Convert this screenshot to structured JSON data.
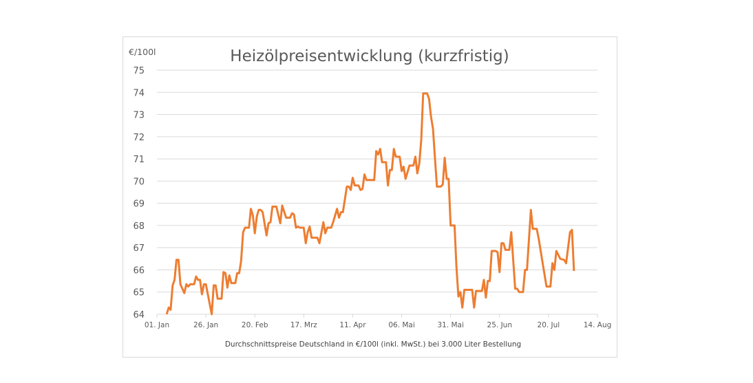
{
  "chart_data": {
    "type": "line",
    "title": "Heizölpreisentwicklung (kurzfristig)",
    "ylabel": "€/100l",
    "xlabel": "Durchschnittspreise Deutschland in €/100l (inkl. MwSt.) bei 3.000 Liter Bestellung",
    "ylim": [
      64,
      75
    ],
    "yticks": [
      "64",
      "65",
      "66",
      "67",
      "68",
      "69",
      "70",
      "71",
      "72",
      "73",
      "74",
      "75"
    ],
    "xlim": [
      "01-01",
      "08-14"
    ],
    "xticks": [
      {
        "date": "01-01",
        "label": "01. Jan"
      },
      {
        "date": "01-26",
        "label": "26. Jan"
      },
      {
        "date": "02-20",
        "label": "20. Feb"
      },
      {
        "date": "03-17",
        "label": "17. Mrz"
      },
      {
        "date": "04-11",
        "label": "11. Apr"
      },
      {
        "date": "05-06",
        "label": "06. Mai"
      },
      {
        "date": "05-31",
        "label": "31. Mai"
      },
      {
        "date": "06-25",
        "label": "25. Jun"
      },
      {
        "date": "07-20",
        "label": "20. Jul"
      },
      {
        "date": "08-14",
        "label": "14. Aug"
      }
    ],
    "grid": true,
    "line_color": "#ED7D31",
    "points": [
      [
        "01-06",
        64.0
      ],
      [
        "01-07",
        64.3
      ],
      [
        "01-08",
        64.2
      ],
      [
        "01-09",
        65.3
      ],
      [
        "01-10",
        65.55
      ],
      [
        "01-11",
        66.45
      ],
      [
        "01-12",
        66.45
      ],
      [
        "01-13",
        65.35
      ],
      [
        "01-15",
        64.95
      ],
      [
        "01-16",
        65.35
      ],
      [
        "01-17",
        65.25
      ],
      [
        "01-18",
        65.35
      ],
      [
        "01-20",
        65.35
      ],
      [
        "01-21",
        65.7
      ],
      [
        "01-22",
        65.55
      ],
      [
        "01-23",
        65.55
      ],
      [
        "01-24",
        64.9
      ],
      [
        "01-25",
        65.35
      ],
      [
        "01-26",
        65.35
      ],
      [
        "01-29",
        64.0
      ],
      [
        "01-30",
        65.3
      ],
      [
        "01-31",
        65.3
      ],
      [
        "02-01",
        64.7
      ],
      [
        "02-03",
        64.7
      ],
      [
        "02-04",
        65.9
      ],
      [
        "02-05",
        65.85
      ],
      [
        "02-06",
        65.2
      ],
      [
        "02-07",
        65.75
      ],
      [
        "02-08",
        65.4
      ],
      [
        "02-10",
        65.4
      ],
      [
        "02-11",
        65.85
      ],
      [
        "02-12",
        65.85
      ],
      [
        "02-13",
        66.4
      ],
      [
        "02-14",
        67.7
      ],
      [
        "02-15",
        67.9
      ],
      [
        "02-17",
        67.9
      ],
      [
        "02-18",
        68.75
      ],
      [
        "02-19",
        68.45
      ],
      [
        "02-20",
        67.65
      ],
      [
        "02-21",
        68.4
      ],
      [
        "02-22",
        68.7
      ],
      [
        "02-23",
        68.7
      ],
      [
        "02-24",
        68.6
      ],
      [
        "02-26",
        67.55
      ],
      [
        "02-27",
        68.1
      ],
      [
        "02-28",
        68.15
      ],
      [
        "03-01",
        68.85
      ],
      [
        "03-03",
        68.85
      ],
      [
        "03-05",
        68.1
      ],
      [
        "03-06",
        68.9
      ],
      [
        "03-08",
        68.35
      ],
      [
        "03-10",
        68.35
      ],
      [
        "03-11",
        68.55
      ],
      [
        "03-12",
        68.5
      ],
      [
        "03-13",
        67.9
      ],
      [
        "03-14",
        67.95
      ],
      [
        "03-15",
        67.9
      ],
      [
        "03-17",
        67.9
      ],
      [
        "03-18",
        67.2
      ],
      [
        "03-19",
        67.7
      ],
      [
        "03-20",
        67.95
      ],
      [
        "03-21",
        67.45
      ],
      [
        "03-24",
        67.45
      ],
      [
        "03-25",
        67.2
      ],
      [
        "03-27",
        68.15
      ],
      [
        "03-28",
        67.65
      ],
      [
        "03-29",
        67.9
      ],
      [
        "03-31",
        67.9
      ],
      [
        "04-01",
        68.15
      ],
      [
        "04-03",
        68.75
      ],
      [
        "04-04",
        68.35
      ],
      [
        "04-05",
        68.6
      ],
      [
        "04-06",
        68.6
      ],
      [
        "04-08",
        69.75
      ],
      [
        "04-09",
        69.75
      ],
      [
        "04-10",
        69.6
      ],
      [
        "04-11",
        70.15
      ],
      [
        "04-12",
        69.8
      ],
      [
        "04-14",
        69.8
      ],
      [
        "04-15",
        69.6
      ],
      [
        "04-16",
        69.65
      ],
      [
        "04-17",
        70.3
      ],
      [
        "04-18",
        70.05
      ],
      [
        "04-22",
        70.05
      ],
      [
        "04-23",
        71.35
      ],
      [
        "04-24",
        71.2
      ],
      [
        "04-25",
        71.45
      ],
      [
        "04-26",
        70.85
      ],
      [
        "04-28",
        70.85
      ],
      [
        "04-29",
        69.8
      ],
      [
        "04-30",
        70.5
      ],
      [
        "05-01",
        70.5
      ],
      [
        "05-02",
        71.45
      ],
      [
        "05-03",
        71.1
      ],
      [
        "05-05",
        71.1
      ],
      [
        "05-06",
        70.45
      ],
      [
        "05-07",
        70.65
      ],
      [
        "05-08",
        70.1
      ],
      [
        "05-10",
        70.7
      ],
      [
        "05-12",
        70.7
      ],
      [
        "05-13",
        71.1
      ],
      [
        "05-14",
        70.35
      ],
      [
        "05-15",
        70.8
      ],
      [
        "05-16",
        71.85
      ],
      [
        "05-17",
        73.95
      ],
      [
        "05-19",
        73.95
      ],
      [
        "05-20",
        73.7
      ],
      [
        "05-21",
        72.9
      ],
      [
        "05-22",
        72.35
      ],
      [
        "05-23",
        71.05
      ],
      [
        "05-24",
        69.75
      ],
      [
        "05-26",
        69.75
      ],
      [
        "05-27",
        69.85
      ],
      [
        "05-28",
        71.05
      ],
      [
        "05-29",
        70.1
      ],
      [
        "05-30",
        70.1
      ],
      [
        "05-31",
        68.0
      ],
      [
        "06-02",
        68.0
      ],
      [
        "06-03",
        66.1
      ],
      [
        "06-04",
        64.8
      ],
      [
        "06-05",
        65.0
      ],
      [
        "06-06",
        64.3
      ],
      [
        "06-07",
        65.1
      ],
      [
        "06-11",
        65.1
      ],
      [
        "06-12",
        64.3
      ],
      [
        "06-13",
        65.05
      ],
      [
        "06-16",
        65.05
      ],
      [
        "06-17",
        65.55
      ],
      [
        "06-18",
        64.75
      ],
      [
        "06-19",
        65.5
      ],
      [
        "06-20",
        65.5
      ],
      [
        "06-21",
        66.85
      ],
      [
        "06-23",
        66.85
      ],
      [
        "06-24",
        66.8
      ],
      [
        "06-25",
        65.9
      ],
      [
        "06-26",
        67.2
      ],
      [
        "06-27",
        67.2
      ],
      [
        "06-28",
        66.9
      ],
      [
        "06-30",
        66.9
      ],
      [
        "07-01",
        67.7
      ],
      [
        "07-03",
        65.15
      ],
      [
        "07-04",
        65.15
      ],
      [
        "07-05",
        65.0
      ],
      [
        "07-07",
        65.0
      ],
      [
        "07-08",
        66.0
      ],
      [
        "07-09",
        66.0
      ],
      [
        "07-11",
        68.7
      ],
      [
        "07-12",
        67.85
      ],
      [
        "07-14",
        67.85
      ],
      [
        "07-15",
        67.4
      ],
      [
        "07-17",
        66.3
      ],
      [
        "07-19",
        65.25
      ],
      [
        "07-21",
        65.25
      ],
      [
        "07-22",
        66.3
      ],
      [
        "07-23",
        66.0
      ],
      [
        "07-24",
        66.85
      ],
      [
        "07-26",
        66.5
      ],
      [
        "07-28",
        66.45
      ],
      [
        "07-29",
        66.3
      ],
      [
        "07-31",
        67.7
      ],
      [
        "08-01",
        67.8
      ],
      [
        "08-02",
        65.95
      ]
    ]
  }
}
